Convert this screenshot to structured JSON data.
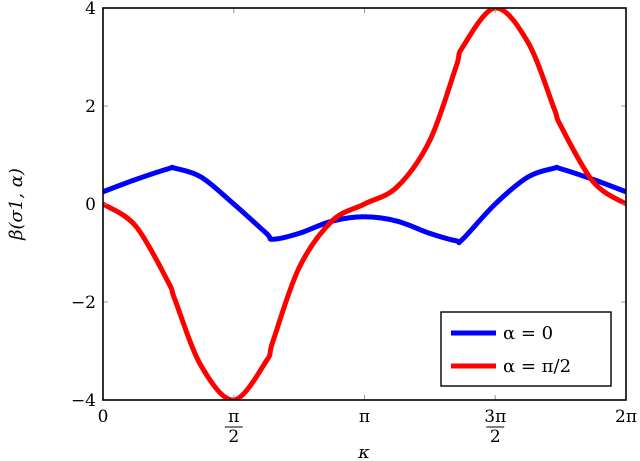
{
  "chart_data": {
    "type": "line",
    "title": "",
    "xlabel": "κ",
    "ylabel": "β(σ1, α)",
    "xlim": [
      0,
      6.2832
    ],
    "ylim": [
      -4,
      4
    ],
    "x_ticks": [
      {
        "value": 0,
        "label": "0"
      },
      {
        "value": 1.5708,
        "label": "π/2",
        "num": "π",
        "den": "2"
      },
      {
        "value": 3.1416,
        "label": "π"
      },
      {
        "value": 4.7124,
        "label": "3π/2",
        "num": "3π",
        "den": "2"
      },
      {
        "value": 6.2832,
        "label": "2π"
      }
    ],
    "y_ticks": [
      {
        "value": 4,
        "label": "4"
      },
      {
        "value": 2,
        "label": "2"
      },
      {
        "value": 0,
        "label": "0"
      },
      {
        "value": -2,
        "label": "−2"
      },
      {
        "value": -4,
        "label": "−4"
      }
    ],
    "grid": false,
    "legend_position": "lower right",
    "x": [
      0,
      0.3927,
      0.7854,
      0.8639,
      1.1781,
      1.5708,
      1.9635,
      2.042,
      2.3562,
      2.7489,
      3.1416,
      3.5343,
      3.927,
      4.2412,
      4.3197,
      4.7124,
      5.1051,
      5.4192,
      5.4978,
      5.8905,
      6.2832
    ],
    "series": [
      {
        "name": "α = 0",
        "color": "#0000ff",
        "values": [
          0.25,
          0.5,
          0.72,
          0.73,
          0.55,
          0.0,
          -0.6,
          -0.72,
          -0.6,
          -0.35,
          -0.26,
          -0.35,
          -0.6,
          -0.75,
          -0.72,
          0.0,
          0.55,
          0.73,
          0.72,
          0.5,
          0.25
        ]
      },
      {
        "name": "α = π/2",
        "color": "#ff0000",
        "values": [
          0.0,
          -0.45,
          -1.6,
          -1.95,
          -3.3,
          -4.0,
          -3.2,
          -2.8,
          -1.3,
          -0.35,
          0.0,
          0.35,
          1.3,
          2.8,
          3.2,
          4.0,
          3.3,
          1.95,
          1.6,
          0.45,
          0.0
        ]
      }
    ]
  },
  "legend": {
    "items": [
      {
        "label": "α = 0",
        "color": "#0000ff"
      },
      {
        "label": "α = π/2",
        "color": "#ff0000"
      }
    ]
  },
  "axes": {
    "xlabel": "κ",
    "ylabel": "β(σ1, α)"
  }
}
